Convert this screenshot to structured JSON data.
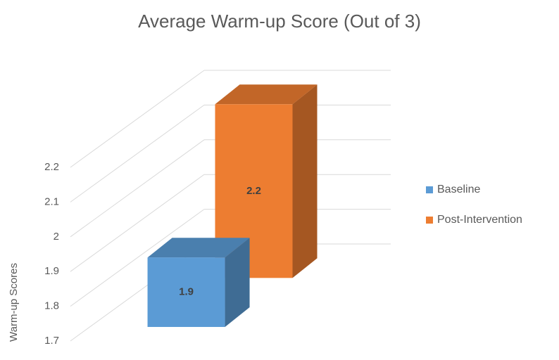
{
  "chart_data": {
    "type": "bar3d",
    "title": "Average Warm-up Score (Out of 3)",
    "y_label": "Warm-up Scores",
    "series": [
      {
        "name": "Baseline",
        "color": "#5b9bd5",
        "values": [
          1.9
        ]
      },
      {
        "name": "Post-Intervention",
        "color": "#ed7d31",
        "values": [
          2.2
        ]
      }
    ],
    "ylim": [
      1.7,
      2.2
    ],
    "yticks": [
      1.7,
      1.8,
      1.9,
      2,
      2.1,
      2.2
    ],
    "grid": true,
    "legend": "right"
  }
}
